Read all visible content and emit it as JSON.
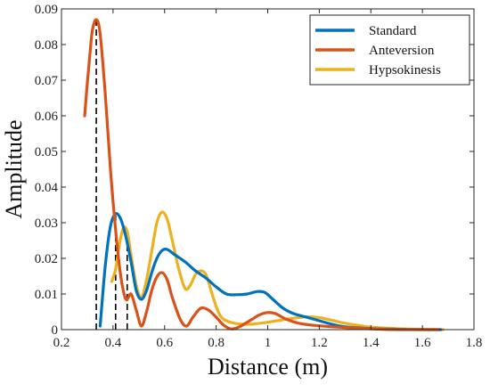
{
  "chart_data": {
    "type": "line",
    "title": "",
    "xlabel": "Distance  (m)",
    "ylabel": "Amplitude",
    "xlim": [
      0.2,
      1.8
    ],
    "ylim": [
      0,
      0.09
    ],
    "xticks": [
      0.2,
      0.4,
      0.6,
      0.8,
      1,
      1.2,
      1.4,
      1.6,
      1.8
    ],
    "xtick_labels": [
      "0.2",
      "0.4",
      "0.6",
      "0.8",
      "1",
      "1.2",
      "1.4",
      "1.6",
      "1.8"
    ],
    "yticks": [
      0,
      0.01,
      0.02,
      0.03,
      0.04,
      0.05,
      0.06,
      0.07,
      0.08,
      0.09
    ],
    "ytick_labels": [
      "0",
      "0.01",
      "0.02",
      "0.03",
      "0.04",
      "0.05",
      "0.06",
      "0.07",
      "0.08",
      "0.09"
    ],
    "grid": false,
    "legend_position": "top-right",
    "series": [
      {
        "name": "Standard",
        "color": "#0072BD",
        "points": [
          [
            0.35,
            0.001
          ],
          [
            0.37,
            0.018
          ],
          [
            0.39,
            0.029
          ],
          [
            0.41,
            0.0325
          ],
          [
            0.43,
            0.031
          ],
          [
            0.45,
            0.026
          ],
          [
            0.47,
            0.019
          ],
          [
            0.49,
            0.011
          ],
          [
            0.51,
            0.0085
          ],
          [
            0.53,
            0.011
          ],
          [
            0.55,
            0.016
          ],
          [
            0.57,
            0.02
          ],
          [
            0.59,
            0.0222
          ],
          [
            0.61,
            0.0225
          ],
          [
            0.64,
            0.021
          ],
          [
            0.68,
            0.019
          ],
          [
            0.72,
            0.0165
          ],
          [
            0.76,
            0.0145
          ],
          [
            0.8,
            0.012
          ],
          [
            0.84,
            0.01
          ],
          [
            0.88,
            0.0098
          ],
          [
            0.92,
            0.01
          ],
          [
            0.96,
            0.0107
          ],
          [
            0.99,
            0.0104
          ],
          [
            1.02,
            0.0085
          ],
          [
            1.06,
            0.006
          ],
          [
            1.1,
            0.0045
          ],
          [
            1.15,
            0.0035
          ],
          [
            1.2,
            0.0025
          ],
          [
            1.25,
            0.0015
          ],
          [
            1.3,
            0.0008
          ],
          [
            1.4,
            0.0003
          ],
          [
            1.5,
            0.0001
          ],
          [
            1.6,
            0.0
          ],
          [
            1.67,
            0.0
          ]
        ]
      },
      {
        "name": "Anteversion",
        "color": "#D95319",
        "points": [
          [
            0.29,
            0.06
          ],
          [
            0.3,
            0.069
          ],
          [
            0.31,
            0.077
          ],
          [
            0.32,
            0.084
          ],
          [
            0.335,
            0.087
          ],
          [
            0.35,
            0.083
          ],
          [
            0.37,
            0.066
          ],
          [
            0.39,
            0.045
          ],
          [
            0.41,
            0.028
          ],
          [
            0.43,
            0.015
          ],
          [
            0.45,
            0.0085
          ],
          [
            0.47,
            0.01
          ],
          [
            0.49,
            0.0055
          ],
          [
            0.51,
            0.001
          ],
          [
            0.53,
            0.005
          ],
          [
            0.55,
            0.011
          ],
          [
            0.57,
            0.0148
          ],
          [
            0.59,
            0.016
          ],
          [
            0.61,
            0.014
          ],
          [
            0.63,
            0.009
          ],
          [
            0.66,
            0.003
          ],
          [
            0.685,
            0.001
          ],
          [
            0.71,
            0.0035
          ],
          [
            0.74,
            0.006
          ],
          [
            0.77,
            0.0055
          ],
          [
            0.8,
            0.0035
          ],
          [
            0.83,
            0.0012
          ],
          [
            0.86,
            0.0002
          ],
          [
            0.89,
            0.0008
          ],
          [
            0.93,
            0.0025
          ],
          [
            0.97,
            0.0042
          ],
          [
            1.0,
            0.0048
          ],
          [
            1.03,
            0.0045
          ],
          [
            1.07,
            0.003
          ],
          [
            1.12,
            0.0018
          ],
          [
            1.18,
            0.0012
          ],
          [
            1.25,
            0.0008
          ],
          [
            1.35,
            0.0004
          ],
          [
            1.45,
            0.0001
          ],
          [
            1.55,
            0.0
          ],
          [
            1.66,
            0.0
          ]
        ]
      },
      {
        "name": "Hypsokinesis",
        "color": "#EDB120",
        "points": [
          [
            0.395,
            0.0135
          ],
          [
            0.41,
            0.017
          ],
          [
            0.425,
            0.024
          ],
          [
            0.44,
            0.0285
          ],
          [
            0.455,
            0.0275
          ],
          [
            0.47,
            0.021
          ],
          [
            0.49,
            0.0125
          ],
          [
            0.51,
            0.009
          ],
          [
            0.53,
            0.014
          ],
          [
            0.55,
            0.022
          ],
          [
            0.57,
            0.03
          ],
          [
            0.59,
            0.033
          ],
          [
            0.61,
            0.031
          ],
          [
            0.63,
            0.025
          ],
          [
            0.655,
            0.017
          ],
          [
            0.68,
            0.0115
          ],
          [
            0.7,
            0.0125
          ],
          [
            0.72,
            0.0155
          ],
          [
            0.74,
            0.0165
          ],
          [
            0.76,
            0.0155
          ],
          [
            0.78,
            0.011
          ],
          [
            0.8,
            0.0065
          ],
          [
            0.82,
            0.0035
          ],
          [
            0.85,
            0.0022
          ],
          [
            0.89,
            0.0016
          ],
          [
            0.93,
            0.0015
          ],
          [
            0.97,
            0.0018
          ],
          [
            1.02,
            0.0023
          ],
          [
            1.07,
            0.0029
          ],
          [
            1.11,
            0.0033
          ],
          [
            1.15,
            0.0036
          ],
          [
            1.2,
            0.0034
          ],
          [
            1.25,
            0.0026
          ],
          [
            1.3,
            0.0018
          ],
          [
            1.35,
            0.0012
          ],
          [
            1.4,
            0.0007
          ],
          [
            1.5,
            0.0003
          ],
          [
            1.6,
            0.0001
          ],
          [
            1.68,
            0.0
          ]
        ]
      }
    ],
    "reference_lines": [
      {
        "style": "dashed",
        "color": "#000000",
        "x": 0.335,
        "y": 0.087
      },
      {
        "style": "dashed",
        "color": "#000000",
        "x": 0.41,
        "y": 0.0325
      },
      {
        "style": "dashed",
        "color": "#000000",
        "x": 0.455,
        "y": 0.0275
      }
    ]
  }
}
